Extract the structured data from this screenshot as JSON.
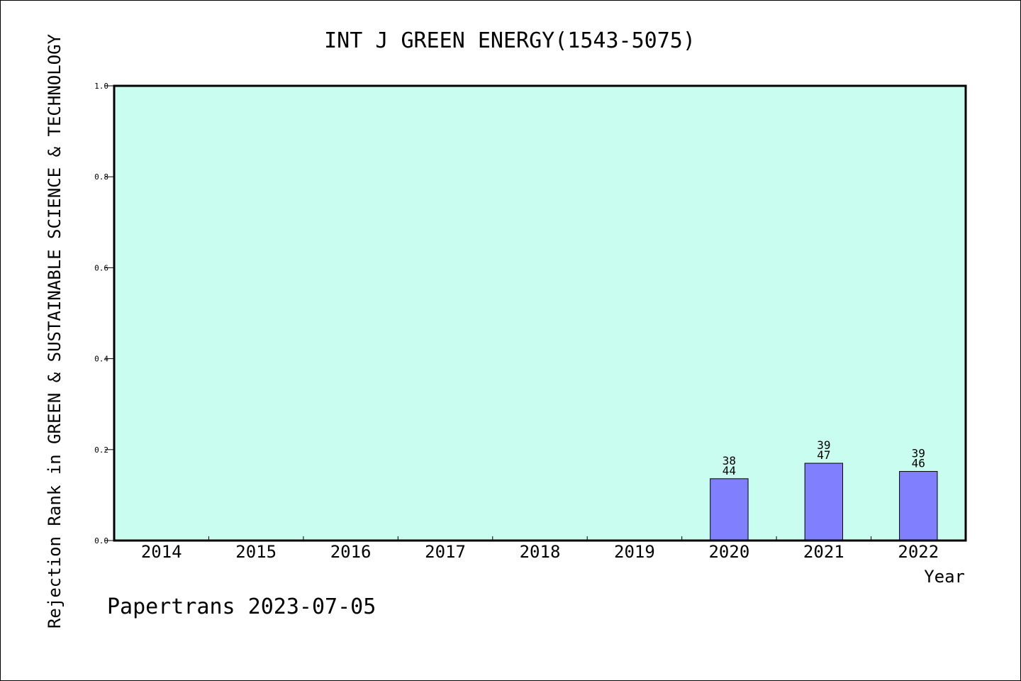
{
  "chart_data": {
    "type": "bar",
    "title": "INT J GREEN ENERGY(1543-5075)",
    "xlabel": "Year",
    "ylabel": "Rejection Rank in GREEN & SUSTAINABLE SCIENCE & TECHNOLOGY",
    "categories": [
      "2014",
      "2015",
      "2016",
      "2017",
      "2018",
      "2019",
      "2020",
      "2021",
      "2022"
    ],
    "values": [
      null,
      null,
      null,
      null,
      null,
      null,
      0.136,
      0.17,
      0.152
    ],
    "bar_labels": [
      null,
      null,
      null,
      null,
      null,
      null,
      {
        "top": "38",
        "bottom": "44"
      },
      {
        "top": "39",
        "bottom": "47"
      },
      {
        "top": "39",
        "bottom": "46"
      }
    ],
    "ylim": [
      0,
      1.0
    ],
    "yticks": [
      "0.0",
      "0.2",
      "0.4",
      "0.6",
      "0.8",
      "1.0"
    ],
    "grid": false,
    "colors": {
      "plot_background": "#c8fdef",
      "bar_fill": "#8080ff",
      "bar_stroke": "#000000"
    }
  },
  "footer": {
    "text": "Papertrans 2023-07-05"
  }
}
